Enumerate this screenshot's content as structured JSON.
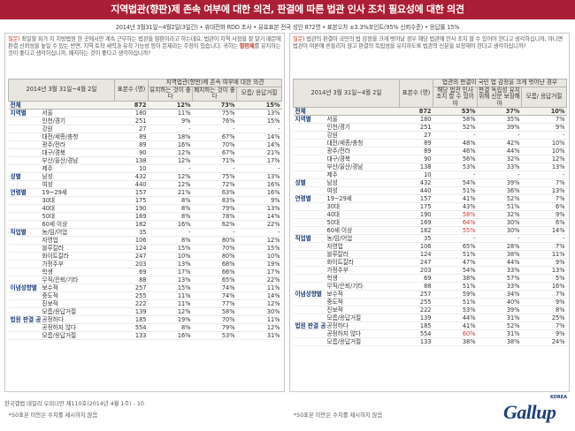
{
  "title": "지역법관(향판)제 존속 여부에 대한 의견, 판결에 따른 법관 인사 조치 필요성에 대한 의견",
  "info": "2014년 3월31일~4월2일(3일간) • 휴대전화 RDD 조사 • 유효표본 전국 성인 872명 • 표본오차 ±3.3%포인트(95% 신뢰수준) • 응답률 15%",
  "left": {
    "question_label": "질문)",
    "question_pre": "최일할 파가 지 지방법원 한 곳에서만 계속 근무하는 법관을 향판이라고 하는데요. 법관이 지역 사정을 잘 알기 때문에 판결 신뢰성을 높일 수 있는 반면, 지역 토착 세력과 유착 가능성 등이 문제라는 주장이 있습니다. 귀하는 ",
    "question_hl": "향판제",
    "question_post": "를 유지하는 것이 좋다고 생각하십니까, 폐지하는 것이 좋다고 생각하십니까?",
    "period": "2014년 3월 31일~4월 2일",
    "h_n": "표본수 (명)",
    "h_group": "지역법관(향판)제 존속 여부에 대한 의견",
    "cols": [
      "유지하는 것이 좋다",
      "폐지하는 것이 좋다",
      "모름/ 응답거절"
    ],
    "footnote": "*50표본 미만은 수치를 제시하지 않음"
  },
  "right": {
    "question_label": "질문)",
    "question_pre": "법관의 판결이 국민의 법 감정을 크게 벗어날 경우 해당 법관에 인사 조치 할 수 있어야 한다고 생각하십니까, 아니면 법관이 여론에 흔들리지 않고 판결의 독립성을 유지하도록 법관의 신분을 보장해야 한다고 생각하십니까?",
    "question_hl": "",
    "question_post": "",
    "period": "2014년 3월 31일~4월 2일",
    "h_n": "표본수 (명)",
    "h_group": "법관의 판결이 국민 법 감정을 크게 벗어난 경우",
    "cols": [
      "해당 법관 인사 조치 할 수 있어야",
      "판결 독립성 유지 위해 신분 보장해야",
      "모름/ 응답거절"
    ],
    "footnote": "*50표본 미만은 수치를 제시하지 않음"
  },
  "rows": [
    {
      "cat": "전체",
      "sub": "",
      "n": "872",
      "a": "12%",
      "b": "73%",
      "c": "15%",
      "ra": "53%",
      "rb": "37%",
      "rc": "10%",
      "total": true
    },
    {
      "cat": "지역별",
      "sub": "서울",
      "n": "180",
      "a": "11%",
      "b": "75%",
      "c": "13%",
      "ra": "58%",
      "rb": "35%",
      "rc": "7%",
      "grp": true
    },
    {
      "cat": "",
      "sub": "인천/경기",
      "n": "251",
      "a": "9%",
      "b": "76%",
      "c": "15%",
      "ra": "52%",
      "rb": "39%",
      "rc": "9%"
    },
    {
      "cat": "",
      "sub": "강원",
      "n": "27",
      "a": "-",
      "b": "-",
      "c": "-",
      "ra": "-",
      "rb": "-",
      "rc": "-"
    },
    {
      "cat": "",
      "sub": "대전/세종/충청",
      "n": "89",
      "a": "18%",
      "b": "67%",
      "c": "14%",
      "ra": "48%",
      "rb": "42%",
      "rc": "10%"
    },
    {
      "cat": "",
      "sub": "광주/전라",
      "n": "89",
      "a": "16%",
      "b": "70%",
      "c": "14%",
      "ra": "46%",
      "rb": "44%",
      "rc": "10%"
    },
    {
      "cat": "",
      "sub": "대구/경북",
      "n": "90",
      "a": "12%",
      "b": "67%",
      "c": "21%",
      "ra": "56%",
      "rb": "32%",
      "rc": "12%"
    },
    {
      "cat": "",
      "sub": "부산/울산/경남",
      "n": "138",
      "a": "12%",
      "b": "71%",
      "c": "17%",
      "ra": "53%",
      "rb": "33%",
      "rc": "13%"
    },
    {
      "cat": "",
      "sub": "제주",
      "n": "10",
      "a": "-",
      "b": "-",
      "c": "-",
      "ra": "-",
      "rb": "-",
      "rc": "-"
    },
    {
      "cat": "성별",
      "sub": "남성",
      "n": "432",
      "a": "12%",
      "b": "75%",
      "c": "13%",
      "ra": "54%",
      "rb": "39%",
      "rc": "7%",
      "grp": true
    },
    {
      "cat": "",
      "sub": "여성",
      "n": "440",
      "a": "12%",
      "b": "72%",
      "c": "16%",
      "ra": "51%",
      "rb": "36%",
      "rc": "13%"
    },
    {
      "cat": "연령별",
      "sub": "19~29세",
      "n": "157",
      "a": "21%",
      "b": "63%",
      "c": "16%",
      "ra": "41%",
      "rb": "52%",
      "rc": "7%",
      "grp": true
    },
    {
      "cat": "",
      "sub": "30대",
      "n": "175",
      "a": "8%",
      "b": "83%",
      "c": "9%",
      "ra": "43%",
      "rb": "51%",
      "rc": "6%"
    },
    {
      "cat": "",
      "sub": "40대",
      "n": "190",
      "a": "8%",
      "b": "79%",
      "c": "13%",
      "ra": "58%",
      "rb": "32%",
      "rc": "9%",
      "redA": true
    },
    {
      "cat": "",
      "sub": "50대",
      "n": "169",
      "a": "8%",
      "b": "78%",
      "c": "14%",
      "ra": "64%",
      "rb": "30%",
      "rc": "6%",
      "redA": true
    },
    {
      "cat": "",
      "sub": "60세 이상",
      "n": "182",
      "a": "16%",
      "b": "62%",
      "c": "22%",
      "ra": "55%",
      "rb": "30%",
      "rc": "14%",
      "redA": true
    },
    {
      "cat": "직업별",
      "sub": "농/임/어업",
      "n": "35",
      "a": "-",
      "b": "-",
      "c": "-",
      "ra": "-",
      "rb": "-",
      "rc": "-",
      "grp": true
    },
    {
      "cat": "",
      "sub": "자영업",
      "n": "106",
      "a": "8%",
      "b": "80%",
      "c": "12%",
      "ra": "65%",
      "rb": "28%",
      "rc": "7%"
    },
    {
      "cat": "",
      "sub": "블루칼라",
      "n": "124",
      "a": "15%",
      "b": "70%",
      "c": "15%",
      "ra": "51%",
      "rb": "38%",
      "rc": "11%"
    },
    {
      "cat": "",
      "sub": "화이트칼라",
      "n": "247",
      "a": "10%",
      "b": "80%",
      "c": "10%",
      "ra": "47%",
      "rb": "44%",
      "rc": "9%"
    },
    {
      "cat": "",
      "sub": "가정주부",
      "n": "203",
      "a": "13%",
      "b": "68%",
      "c": "19%",
      "ra": "54%",
      "rb": "33%",
      "rc": "13%"
    },
    {
      "cat": "",
      "sub": "학생",
      "n": "69",
      "a": "17%",
      "b": "66%",
      "c": "17%",
      "ra": "38%",
      "rb": "57%",
      "rc": "5%"
    },
    {
      "cat": "",
      "sub": "무직/은퇴/기타",
      "n": "88",
      "a": "13%",
      "b": "65%",
      "c": "22%",
      "ra": "51%",
      "rb": "33%",
      "rc": "16%"
    },
    {
      "cat": "이념성향별",
      "sub": "보수적",
      "n": "257",
      "a": "15%",
      "b": "74%",
      "c": "11%",
      "ra": "59%",
      "rb": "34%",
      "rc": "7%",
      "grp": true
    },
    {
      "cat": "",
      "sub": "중도적",
      "n": "255",
      "a": "11%",
      "b": "74%",
      "c": "14%",
      "ra": "51%",
      "rb": "40%",
      "rc": "9%"
    },
    {
      "cat": "",
      "sub": "진보적",
      "n": "222",
      "a": "11%",
      "b": "77%",
      "c": "12%",
      "ra": "53%",
      "rb": "39%",
      "rc": "8%"
    },
    {
      "cat": "",
      "sub": "모름/응답거절",
      "n": "139",
      "a": "12%",
      "b": "58%",
      "c": "30%",
      "ra": "44%",
      "rb": "31%",
      "rc": "25%"
    },
    {
      "cat": "법원 판결 공정성",
      "sub": "공정하다",
      "n": "185",
      "a": "19%",
      "b": "70%",
      "c": "11%",
      "ra": "41%",
      "rb": "52%",
      "rc": "7%",
      "grp": true
    },
    {
      "cat": "",
      "sub": "공정하지 않다",
      "n": "554",
      "a": "8%",
      "b": "79%",
      "c": "12%",
      "ra": "60%",
      "rb": "31%",
      "rc": "9%",
      "redRA": true
    },
    {
      "cat": "",
      "sub": "모름/응답거절",
      "n": "133",
      "a": "16%",
      "b": "53%",
      "c": "31%",
      "ra": "38%",
      "rb": "38%",
      "rc": "24%"
    }
  ],
  "credit": "한국갤럽 데일리 오피니언 제110호(2014년 4월 1주) - 10",
  "logo": {
    "word": "Gallup",
    "korea": "KOREA"
  }
}
